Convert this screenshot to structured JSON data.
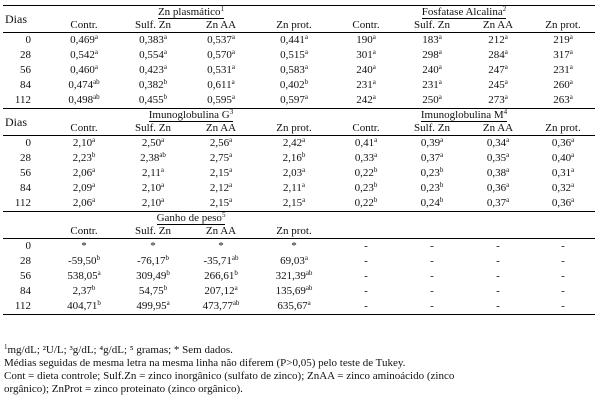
{
  "dias_label": "Dias",
  "headers": {
    "zn_plasmatico": "Zn plasmático",
    "zn_plasmatico_sup": "1",
    "fosfatase": "Fosfatase Alcalina",
    "fosfatase_sup": "2",
    "igg": "Imunoglobulina G",
    "igg_sup": "3",
    "igm": "Imunoglobulina M",
    "igm_sup": "4",
    "ganho": "Ganho de peso",
    "ganho_sup": "5"
  },
  "subcols": [
    "Contr.",
    "Sulf. Zn",
    "Zn AA",
    "Zn prot.",
    "Contr.",
    "Sulf. Zn",
    "Zn AA",
    "Zn prot."
  ],
  "block1": [
    [
      [
        "0",
        ""
      ],
      [
        "0,469",
        "a"
      ],
      [
        "0,383",
        "a"
      ],
      [
        "0,537",
        "a"
      ],
      [
        "0,441",
        "a"
      ],
      [
        "190",
        "a"
      ],
      [
        "183",
        "a"
      ],
      [
        "212",
        "a"
      ],
      [
        "219",
        "a"
      ]
    ],
    [
      [
        "28",
        ""
      ],
      [
        "0,542",
        "a"
      ],
      [
        "0,554",
        "a"
      ],
      [
        "0,570",
        "a"
      ],
      [
        "0,515",
        "a"
      ],
      [
        "301",
        "a"
      ],
      [
        "298",
        "a"
      ],
      [
        "284",
        "a"
      ],
      [
        "317",
        "a"
      ]
    ],
    [
      [
        "56",
        ""
      ],
      [
        "0,460",
        "a"
      ],
      [
        "0,423",
        "a"
      ],
      [
        "0,531",
        "a"
      ],
      [
        "0,583",
        "a"
      ],
      [
        "240",
        "a"
      ],
      [
        "240",
        "a"
      ],
      [
        "247",
        "a"
      ],
      [
        "231",
        "a"
      ]
    ],
    [
      [
        "84",
        ""
      ],
      [
        "0,474",
        "ab"
      ],
      [
        "0,382",
        "b"
      ],
      [
        "0,611",
        "a"
      ],
      [
        "0,402",
        "b"
      ],
      [
        "231",
        "a"
      ],
      [
        "231",
        "a"
      ],
      [
        "245",
        "a"
      ],
      [
        "260",
        "a"
      ]
    ],
    [
      [
        "112",
        ""
      ],
      [
        "0,498",
        "ab"
      ],
      [
        "0,455",
        "b"
      ],
      [
        "0,595",
        "a"
      ],
      [
        "0,597",
        "a"
      ],
      [
        "242",
        "a"
      ],
      [
        "250",
        "a"
      ],
      [
        "273",
        "a"
      ],
      [
        "263",
        "a"
      ]
    ]
  ],
  "block2": [
    [
      [
        "0",
        ""
      ],
      [
        "2,10",
        "a"
      ],
      [
        "2,50",
        "a"
      ],
      [
        "2,56",
        "a"
      ],
      [
        "2,42",
        "a"
      ],
      [
        "0,41",
        "a"
      ],
      [
        "0,39",
        "a"
      ],
      [
        "0,34",
        "a"
      ],
      [
        "0,36",
        "a"
      ]
    ],
    [
      [
        "28",
        ""
      ],
      [
        "2,23",
        "b"
      ],
      [
        "2,38",
        "ab"
      ],
      [
        "2,75",
        "a"
      ],
      [
        "2,16",
        "b"
      ],
      [
        "0,33",
        "a"
      ],
      [
        "0,37",
        "a"
      ],
      [
        "0,35",
        "a"
      ],
      [
        "0,40",
        "a"
      ]
    ],
    [
      [
        "56",
        ""
      ],
      [
        "2,06",
        "a"
      ],
      [
        "2,11",
        "a"
      ],
      [
        "2,15",
        "a"
      ],
      [
        "2,03",
        "a"
      ],
      [
        "0,22",
        "b"
      ],
      [
        "0,23",
        "b"
      ],
      [
        "0,38",
        "a"
      ],
      [
        "0,31",
        "a"
      ]
    ],
    [
      [
        "84",
        ""
      ],
      [
        "2,09",
        "a"
      ],
      [
        "2,10",
        "a"
      ],
      [
        "2,12",
        "a"
      ],
      [
        "2,11",
        "a"
      ],
      [
        "0,23",
        "b"
      ],
      [
        "0,23",
        "b"
      ],
      [
        "0,36",
        "a"
      ],
      [
        "0,32",
        "a"
      ]
    ],
    [
      [
        "112",
        ""
      ],
      [
        "2,06",
        "a"
      ],
      [
        "2,10",
        "a"
      ],
      [
        "2,15",
        "a"
      ],
      [
        "2,15",
        "a"
      ],
      [
        "0,22",
        "b"
      ],
      [
        "0,24",
        "b"
      ],
      [
        "0,37",
        "a"
      ],
      [
        "0,36",
        "a"
      ]
    ]
  ],
  "block3": [
    [
      [
        "0",
        ""
      ],
      [
        "*",
        ""
      ],
      [
        "*",
        ""
      ],
      [
        "*",
        ""
      ],
      [
        "*",
        ""
      ],
      [
        "-",
        ""
      ],
      [
        "-",
        ""
      ],
      [
        "-",
        ""
      ],
      [
        "-",
        ""
      ]
    ],
    [
      [
        "28",
        ""
      ],
      [
        "-59,50",
        "b"
      ],
      [
        "-76,17",
        "b"
      ],
      [
        "-35,71",
        "ab"
      ],
      [
        "69,03",
        "a"
      ],
      [
        "-",
        ""
      ],
      [
        "-",
        ""
      ],
      [
        "-",
        ""
      ],
      [
        "-",
        ""
      ]
    ],
    [
      [
        "56",
        ""
      ],
      [
        "538,05",
        "a"
      ],
      [
        "309,49",
        "b"
      ],
      [
        "266,61",
        "b"
      ],
      [
        "321,39",
        "ab"
      ],
      [
        "-",
        ""
      ],
      [
        "-",
        ""
      ],
      [
        "-",
        ""
      ],
      [
        "-",
        ""
      ]
    ],
    [
      [
        "84",
        ""
      ],
      [
        "2,37",
        "b"
      ],
      [
        "54,75",
        "b"
      ],
      [
        "207,12",
        "a"
      ],
      [
        "135,69",
        "ab"
      ],
      [
        "-",
        ""
      ],
      [
        "-",
        ""
      ],
      [
        "-",
        ""
      ],
      [
        "-",
        ""
      ]
    ],
    [
      [
        "112",
        ""
      ],
      [
        "404,71",
        "b"
      ],
      [
        "499,95",
        "a"
      ],
      [
        "473,77",
        "ab"
      ],
      [
        "635,67",
        "a"
      ],
      [
        "-",
        ""
      ],
      [
        "-",
        ""
      ],
      [
        "-",
        ""
      ],
      [
        "-",
        ""
      ]
    ]
  ],
  "notes": {
    "units": "mg/dL; ²U/L; ³g/dL; ⁴g/dL; ⁵ gramas; * Sem dados.",
    "units_sup": "1",
    "tukey": "Médias seguidas de mesma letra na mesma linha não diferem (P>0,05) pelo teste de Tukey.",
    "legend_1": "Cont = dieta controle; Sulf.Zn = zinco inorgânico (sulfato de zinco); ZnAA = zinco aminoácido (zinco",
    "legend_2": "orgânico); ZnProt = zinco proteinato (zinco orgânico)."
  }
}
